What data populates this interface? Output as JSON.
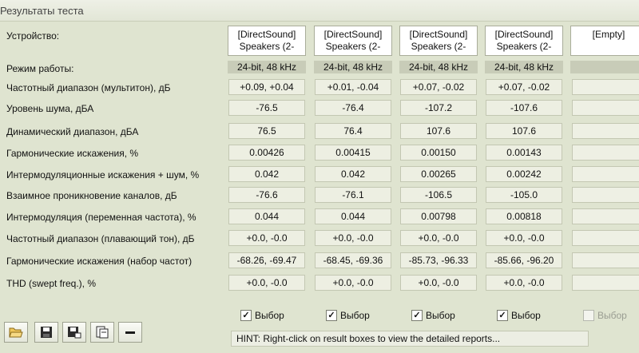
{
  "window": {
    "title": "Результаты теста"
  },
  "row_labels": {
    "device": "Устройство:",
    "mode": "Режим работы:",
    "freq_multitone": "Частотный диапазон (мультитон), дБ",
    "noise": "Уровень шума, дБА",
    "dynamic": "Динамический диапазон, дБА",
    "thd": "Гармонические искажения, %",
    "imd_noise": "Интермодуляционные искажения + шум, %",
    "crosstalk": "Взаимное проникновение каналов, дБ",
    "imd_swept": "Интермодуляция (переменная частота), %",
    "freq_sliding": "Частотный диапазон (плавающий тон), дБ",
    "thd_set": "Гармонические искажения (набор частот)",
    "thd_swept": "THD (swept freq.), %"
  },
  "columns": [
    {
      "device_line1": "[DirectSound]",
      "device_line2": "Speakers (2-",
      "mode": "24-bit, 48 kHz",
      "freq_multitone": "+0.09, +0.04",
      "noise": "-76.5",
      "dynamic": "76.5",
      "thd": "0.00426",
      "imd_noise": "0.042",
      "crosstalk": "-76.6",
      "imd_swept": "0.044",
      "freq_sliding": "+0.0, -0.0",
      "thd_set": "-68.26, -69.47",
      "thd_swept": "+0.0, -0.0",
      "checkbox": "Выбор",
      "checked": true
    },
    {
      "device_line1": "[DirectSound]",
      "device_line2": "Speakers (2-",
      "mode": "24-bit, 48 kHz",
      "freq_multitone": "+0.01, -0.04",
      "noise": "-76.4",
      "dynamic": "76.4",
      "thd": "0.00415",
      "imd_noise": "0.042",
      "crosstalk": "-76.1",
      "imd_swept": "0.044",
      "freq_sliding": "+0.0, -0.0",
      "thd_set": "-68.45, -69.36",
      "thd_swept": "+0.0, -0.0",
      "checkbox": "Выбор",
      "checked": true
    },
    {
      "device_line1": "[DirectSound]",
      "device_line2": "Speakers (2-",
      "mode": "24-bit, 48 kHz",
      "freq_multitone": "+0.07, -0.02",
      "noise": "-107.2",
      "dynamic": "107.6",
      "thd": "0.00150",
      "imd_noise": "0.00265",
      "crosstalk": "-106.5",
      "imd_swept": "0.00798",
      "freq_sliding": "+0.0, -0.0",
      "thd_set": "-85.73, -96.33",
      "thd_swept": "+0.0, -0.0",
      "checkbox": "Выбор",
      "checked": true
    },
    {
      "device_line1": "[DirectSound]",
      "device_line2": "Speakers (2-",
      "mode": "24-bit, 48 kHz",
      "freq_multitone": "+0.07, -0.02",
      "noise": "-107.6",
      "dynamic": "107.6",
      "thd": "0.00143",
      "imd_noise": "0.00242",
      "crosstalk": "-105.0",
      "imd_swept": "0.00818",
      "freq_sliding": "+0.0, -0.0",
      "thd_set": "-85.66, -96.20",
      "thd_swept": "+0.0, -0.0",
      "checkbox": "Выбор",
      "checked": true
    },
    {
      "device_line1": "[Empty]",
      "device_line2": "",
      "mode": "",
      "freq_multitone": "",
      "noise": "",
      "dynamic": "",
      "thd": "",
      "imd_noise": "",
      "crosstalk": "",
      "imd_swept": "",
      "freq_sliding": "",
      "thd_set": "",
      "thd_swept": "",
      "checkbox": "Выбор",
      "checked": false,
      "disabled": true
    }
  ],
  "toolbar": {
    "buttons": [
      {
        "icon": "open-folder-icon"
      },
      {
        "icon": "save-icon"
      },
      {
        "icon": "save-as-icon"
      },
      {
        "icon": "copy-report-icon"
      },
      {
        "icon": "minus-icon"
      }
    ]
  },
  "hint": "HINT: Right-click on result boxes to view the detailed reports..."
}
